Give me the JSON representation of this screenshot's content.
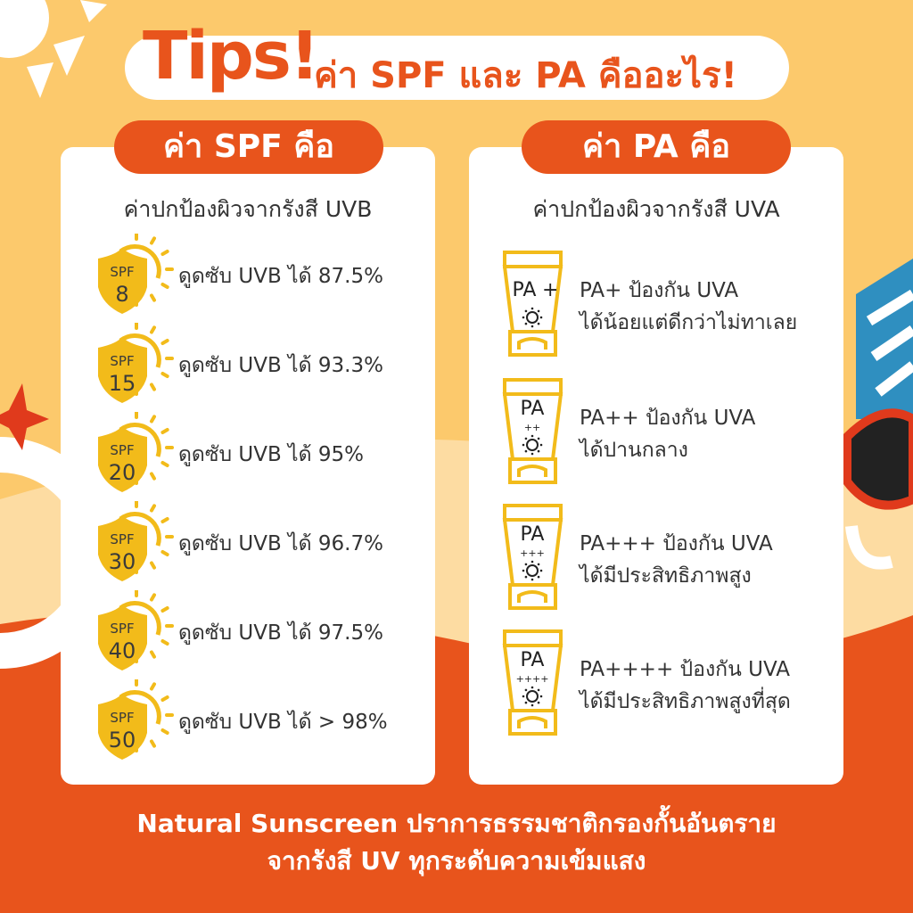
{
  "title": {
    "tips": "Tips!",
    "rest": "ค่า SPF และ PA คืออะไร!"
  },
  "spf": {
    "header": "ค่า SPF คือ",
    "subtitle": "ค่าปกป้องผิวจากรังสี UVB",
    "items": [
      {
        "badge_top": "SPF",
        "badge_num": "8",
        "text": "ดูดซับ UVB ได้ 87.5%"
      },
      {
        "badge_top": "SPF",
        "badge_num": "15",
        "text": "ดูดซับ UVB ได้ 93.3%"
      },
      {
        "badge_top": "SPF",
        "badge_num": "20",
        "text": "ดูดซับ UVB ได้ 95%"
      },
      {
        "badge_top": "SPF",
        "badge_num": "30",
        "text": "ดูดซับ UVB ได้ 96.7%"
      },
      {
        "badge_top": "SPF",
        "badge_num": "40",
        "text": "ดูดซับ UVB ได้ 97.5%"
      },
      {
        "badge_top": "SPF",
        "badge_num": "50",
        "text": "ดูดซับ UVB ได้ > 98%"
      }
    ]
  },
  "pa": {
    "header": "ค่า PA คือ",
    "subtitle": "ค่าปกป้องผิวจากรังสี UVA",
    "items": [
      {
        "tube_label": "PA",
        "tube_plus": "+",
        "line1": "PA+  ป้องกัน UVA",
        "line2": "ได้น้อยแต่ดีกว่าไม่ทาเลย"
      },
      {
        "tube_label": "PA",
        "tube_plus": "++",
        "line1": "PA++ ป้องกัน UVA",
        "line2": "ได้ปานกลาง"
      },
      {
        "tube_label": "PA",
        "tube_plus": "+++",
        "line1": "PA+++ ป้องกัน UVA",
        "line2": "ได้มีประสิทธิภาพสูง"
      },
      {
        "tube_label": "PA",
        "tube_plus": "++++",
        "line1": "PA++++ ป้องกัน UVA",
        "line2": "ได้มีประสิทธิภาพสูงที่สุด"
      }
    ]
  },
  "footer": {
    "line1": "Natural Sunscreen ปราการธรรมชาติกรองกั้นอันตราย",
    "line2": "จากรังสี UV ทุกระดับความเข้มแสง"
  },
  "colors": {
    "orange": "#e8541c",
    "yellow": "#f2bb1a",
    "sand": "#fddca2",
    "sky": "#fcc96c"
  }
}
